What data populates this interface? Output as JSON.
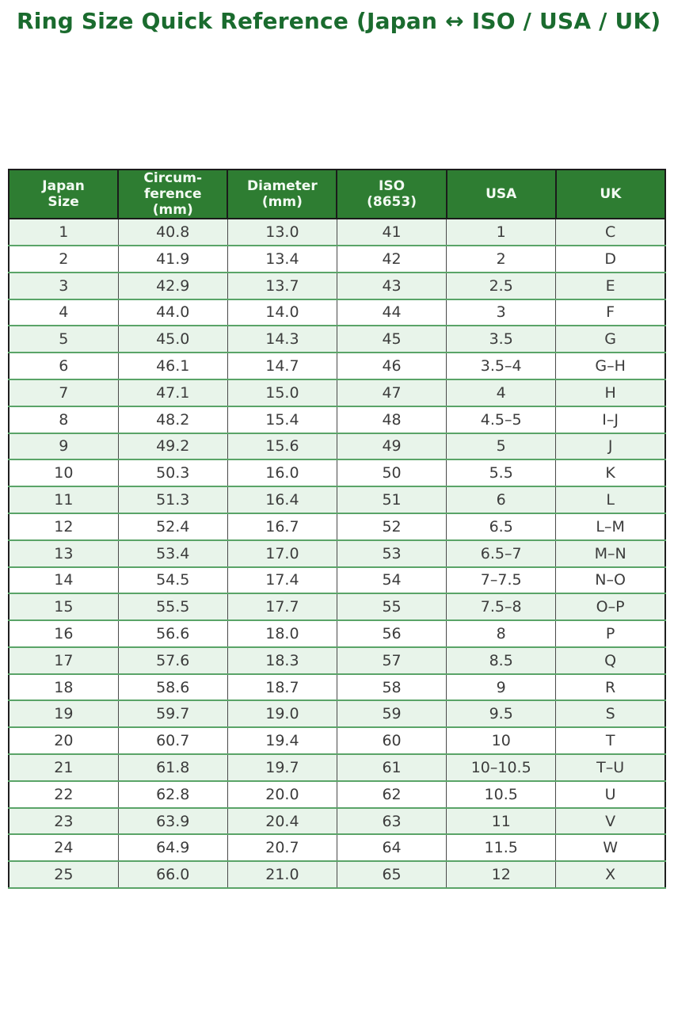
{
  "title": "Ring Size Quick Reference (Japan ↔ ISO / USA / UK)",
  "theme": {
    "title_color": "#1a6b2e",
    "header_bg": "#2e7d32",
    "header_text": "#f2faf2",
    "row_alt_bg": "#e8f4ea",
    "row_bg": "#ffffff",
    "row_rule_color": "#5aa468",
    "outer_border_color": "#1f1f1f",
    "cell_text_color": "#3c3c3c"
  },
  "table": {
    "columns": [
      {
        "key": "japan",
        "label": "Japan\nSize"
      },
      {
        "key": "circumference",
        "label": "Circum-\nference\n(mm)"
      },
      {
        "key": "diameter",
        "label": "Diameter\n(mm)"
      },
      {
        "key": "iso",
        "label": "ISO\n(8653)"
      },
      {
        "key": "usa",
        "label": "USA"
      },
      {
        "key": "uk",
        "label": "UK"
      }
    ],
    "rows": [
      [
        "1",
        "40.8",
        "13.0",
        "41",
        "1",
        "C"
      ],
      [
        "2",
        "41.9",
        "13.4",
        "42",
        "2",
        "D"
      ],
      [
        "3",
        "42.9",
        "13.7",
        "43",
        "2.5",
        "E"
      ],
      [
        "4",
        "44.0",
        "14.0",
        "44",
        "3",
        "F"
      ],
      [
        "5",
        "45.0",
        "14.3",
        "45",
        "3.5",
        "G"
      ],
      [
        "6",
        "46.1",
        "14.7",
        "46",
        "3.5–4",
        "G–H"
      ],
      [
        "7",
        "47.1",
        "15.0",
        "47",
        "4",
        "H"
      ],
      [
        "8",
        "48.2",
        "15.4",
        "48",
        "4.5–5",
        "I–J"
      ],
      [
        "9",
        "49.2",
        "15.6",
        "49",
        "5",
        "J"
      ],
      [
        "10",
        "50.3",
        "16.0",
        "50",
        "5.5",
        "K"
      ],
      [
        "11",
        "51.3",
        "16.4",
        "51",
        "6",
        "L"
      ],
      [
        "12",
        "52.4",
        "16.7",
        "52",
        "6.5",
        "L–M"
      ],
      [
        "13",
        "53.4",
        "17.0",
        "53",
        "6.5–7",
        "M–N"
      ],
      [
        "14",
        "54.5",
        "17.4",
        "54",
        "7–7.5",
        "N–O"
      ],
      [
        "15",
        "55.5",
        "17.7",
        "55",
        "7.5–8",
        "O–P"
      ],
      [
        "16",
        "56.6",
        "18.0",
        "56",
        "8",
        "P"
      ],
      [
        "17",
        "57.6",
        "18.3",
        "57",
        "8.5",
        "Q"
      ],
      [
        "18",
        "58.6",
        "18.7",
        "58",
        "9",
        "R"
      ],
      [
        "19",
        "59.7",
        "19.0",
        "59",
        "9.5",
        "S"
      ],
      [
        "20",
        "60.7",
        "19.4",
        "60",
        "10",
        "T"
      ],
      [
        "21",
        "61.8",
        "19.7",
        "61",
        "10–10.5",
        "T–U"
      ],
      [
        "22",
        "62.8",
        "20.0",
        "62",
        "10.5",
        "U"
      ],
      [
        "23",
        "63.9",
        "20.4",
        "63",
        "11",
        "V"
      ],
      [
        "24",
        "64.9",
        "20.7",
        "64",
        "11.5",
        "W"
      ],
      [
        "25",
        "66.0",
        "21.0",
        "65",
        "12",
        "X"
      ]
    ]
  }
}
